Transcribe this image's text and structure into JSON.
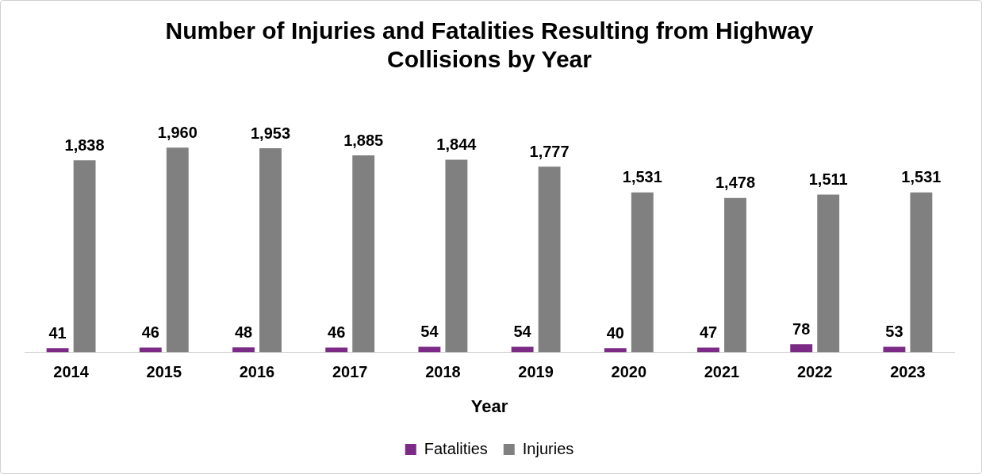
{
  "chart_data": {
    "type": "bar",
    "title": "Number of Injuries and Fatalities Resulting from Highway Collisions by Year",
    "xlabel": "Year",
    "categories": [
      "2014",
      "2015",
      "2016",
      "2017",
      "2018",
      "2019",
      "2020",
      "2021",
      "2022",
      "2023"
    ],
    "series": [
      {
        "name": "Fatalities",
        "color": "#7b2a85",
        "values": [
          41,
          46,
          48,
          46,
          54,
          54,
          40,
          47,
          78,
          53
        ],
        "value_labels": [
          "41",
          "46",
          "48",
          "46",
          "54",
          "54",
          "40",
          "47",
          "78",
          "53"
        ]
      },
      {
        "name": "Injuries",
        "color": "#808080",
        "values": [
          1838,
          1960,
          1953,
          1885,
          1844,
          1777,
          1531,
          1478,
          1511,
          1531
        ],
        "value_labels": [
          "1,838",
          "1,960",
          "1,953",
          "1,885",
          "1,844",
          "1,777",
          "1,531",
          "1,478",
          "1,511",
          "1,531"
        ]
      }
    ],
    "legend": "bottom",
    "grid": false
  }
}
